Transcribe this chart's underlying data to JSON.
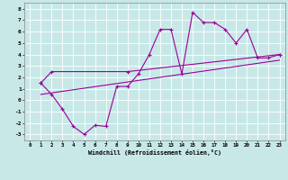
{
  "xlabel": "Windchill (Refroidissement éolien,°C)",
  "xlim": [
    -0.5,
    23.5
  ],
  "ylim": [
    -3.5,
    8.5
  ],
  "yticks": [
    -3,
    -2,
    -1,
    0,
    1,
    2,
    3,
    4,
    5,
    6,
    7,
    8
  ],
  "xticks": [
    0,
    1,
    2,
    3,
    4,
    5,
    6,
    7,
    8,
    9,
    10,
    11,
    12,
    13,
    14,
    15,
    16,
    17,
    18,
    19,
    20,
    21,
    22,
    23
  ],
  "background_color": "#c8e8e8",
  "grid_color": "#ffffff",
  "line_color": "#990099",
  "line1_x": [
    1,
    2,
    3,
    4,
    5,
    6,
    7,
    8,
    9,
    10,
    11,
    12,
    13,
    14,
    15,
    16,
    17,
    18,
    19,
    20,
    21,
    22,
    23
  ],
  "line1_y": [
    1.5,
    0.5,
    -0.8,
    -2.3,
    -3.0,
    -2.2,
    -2.3,
    1.2,
    1.2,
    2.3,
    4.0,
    6.2,
    6.2,
    2.3,
    7.7,
    6.8,
    6.8,
    6.2,
    5.0,
    6.2,
    3.7,
    3.7,
    4.0
  ],
  "line2_x": [
    1,
    2,
    9,
    23
  ],
  "line2_y": [
    1.5,
    2.5,
    2.5,
    4.0
  ],
  "line3_x": [
    1,
    23
  ],
  "line3_y": [
    0.5,
    3.5
  ]
}
